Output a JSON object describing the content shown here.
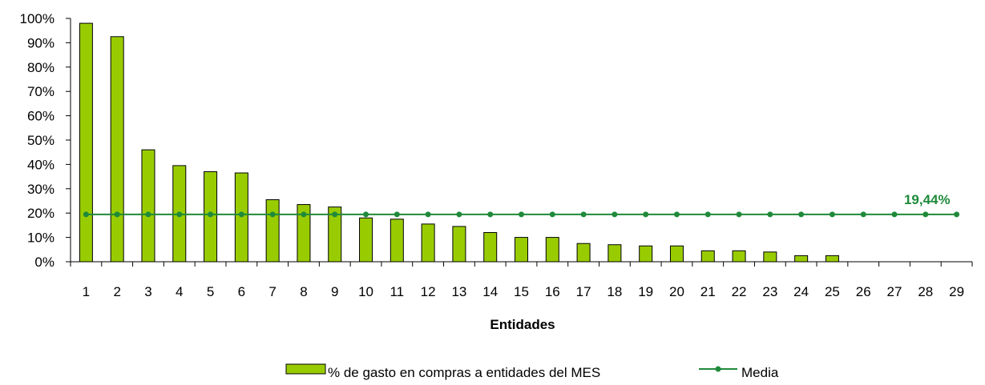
{
  "chart_data": {
    "type": "bar",
    "categories": [
      "1",
      "2",
      "3",
      "4",
      "5",
      "6",
      "7",
      "8",
      "9",
      "10",
      "11",
      "12",
      "13",
      "14",
      "15",
      "16",
      "17",
      "18",
      "19",
      "20",
      "21",
      "22",
      "23",
      "24",
      "25",
      "26",
      "27",
      "28",
      "29"
    ],
    "series": [
      {
        "name": "% de gasto en compras a entidades del MES",
        "type": "bar",
        "values": [
          98,
          92.5,
          46,
          39.5,
          37,
          36.5,
          25.5,
          23.5,
          22.5,
          18,
          17.5,
          15.5,
          14.5,
          12,
          10,
          10,
          7.5,
          7,
          6.5,
          6.5,
          4.5,
          4.5,
          4,
          2.5,
          2.5,
          0,
          0,
          0,
          0
        ]
      },
      {
        "name": "Media",
        "type": "line",
        "value": 19.44
      }
    ],
    "annotation": "19,44%",
    "xlabel": "Entidades",
    "ylabel": "",
    "ylim": [
      0,
      100
    ],
    "yticks": [
      "0%",
      "10%",
      "20%",
      "30%",
      "40%",
      "50%",
      "60%",
      "70%",
      "80%",
      "90%",
      "100%"
    ],
    "grid": false,
    "legend_position": "bottom",
    "colors": {
      "bar_fill": "#99CC00",
      "bar_stroke": "#000000",
      "mean_line": "#1F8A3A",
      "annotation": "#1F8A3A"
    }
  }
}
